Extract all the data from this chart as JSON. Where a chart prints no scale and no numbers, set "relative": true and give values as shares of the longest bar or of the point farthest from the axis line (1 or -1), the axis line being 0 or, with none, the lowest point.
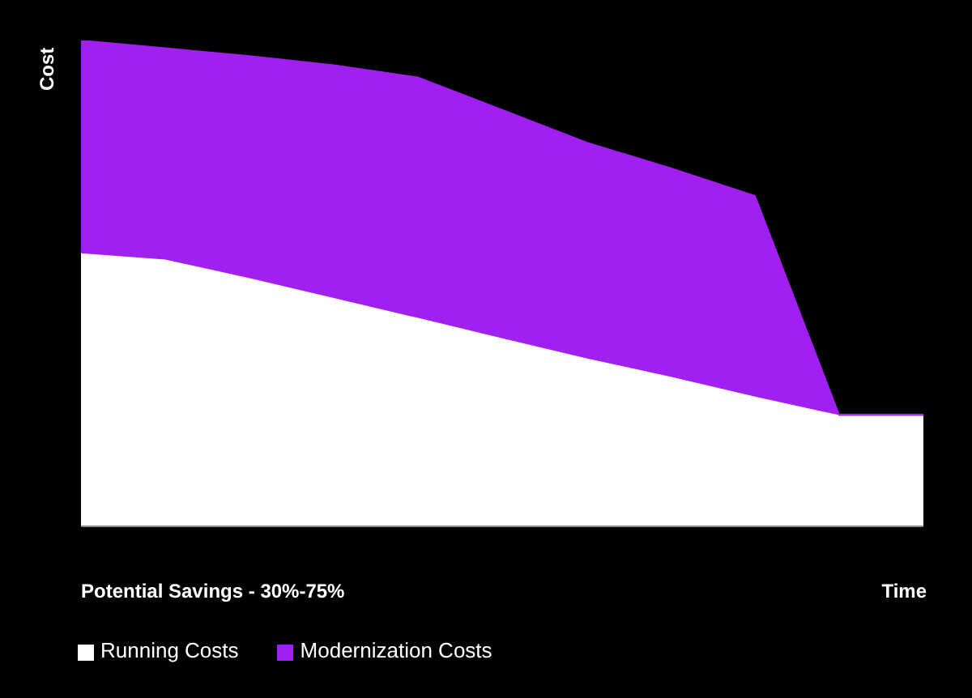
{
  "chart_data": {
    "type": "area",
    "relative": true,
    "stacked": true,
    "ylabel": "Cost",
    "xlabel": "Time",
    "annotations": [
      "Potential Savings - 30%-75%"
    ],
    "legend": "bottom left",
    "categories": [
      null,
      null,
      null,
      null,
      null,
      null,
      null,
      null,
      null,
      null,
      null
    ],
    "series": [
      {
        "name": "Running Costs",
        "color": "#ffffff",
        "values": [
          0.562,
          0.549,
          0.511,
          0.47,
          0.429,
          0.387,
          0.346,
          0.308,
          0.267,
          0.229,
          0.229
        ]
      },
      {
        "name": "Modernization Costs",
        "color": "#a020f0",
        "values": [
          0.438,
          0.435,
          0.457,
          0.479,
          0.495,
          0.47,
          0.444,
          0.429,
          0.413,
          0,
          0
        ]
      }
    ]
  }
}
